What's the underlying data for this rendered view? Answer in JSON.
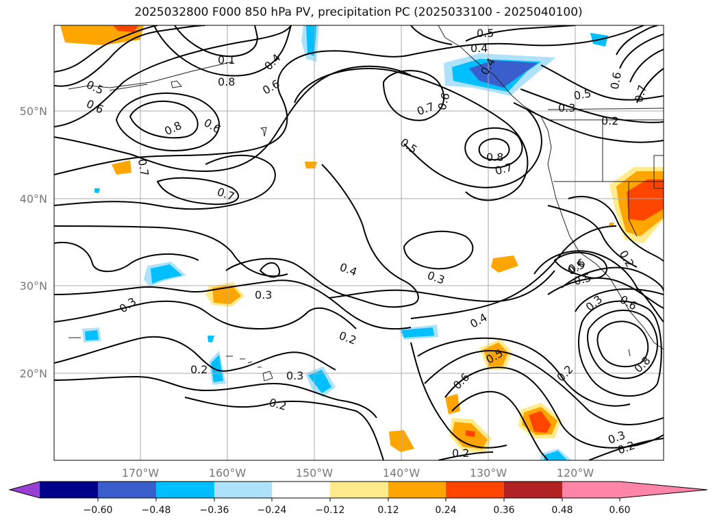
{
  "title": "2025032800 F000 850 hPa PV, precipitation PC (2025033100 - 2025040100)",
  "lat_labels": [
    "50°N",
    "40°N",
    "30°N",
    "20°N"
  ],
  "lon_labels": [
    "170°W",
    "160°W",
    "150°W",
    "140°W",
    "130°W",
    "120°W"
  ],
  "contour_labels": [
    "0.5",
    "0.4",
    "0.7",
    "0.6",
    "0.8",
    "0.1",
    "0.6",
    "0.4",
    "0.8",
    "0.6",
    "0.5",
    "0.6",
    "0.7",
    "0.5",
    "0.8",
    "0.7",
    "0.5",
    "0.3",
    "0.2",
    "0.6",
    "0.4",
    "0.7",
    "0.7",
    "0.5",
    "0.3",
    "0.4",
    "0.3",
    "0.2",
    "0.3",
    "0.2",
    "0.3",
    "0.2",
    "0.4",
    "0.5",
    "0.6",
    "0.2",
    "0.6",
    "0.5",
    "0.6",
    "0.2",
    "0.8",
    "0.3",
    "0.2",
    "0.3",
    "0.2"
  ],
  "colorbar": {
    "ticks": [
      "−0.60",
      "−0.48",
      "−0.36",
      "−0.24",
      "−0.12",
      "0.12",
      "0.24",
      "0.36",
      "0.48",
      "0.60"
    ],
    "colors": [
      "#9a3fd4",
      "#00008b",
      "#3a5fcd",
      "#00bfff",
      "#aee2fa",
      "#ffffff",
      "#ffea8c",
      "#ffa500",
      "#ff4500",
      "#b22222",
      "#ff85a8"
    ]
  }
}
